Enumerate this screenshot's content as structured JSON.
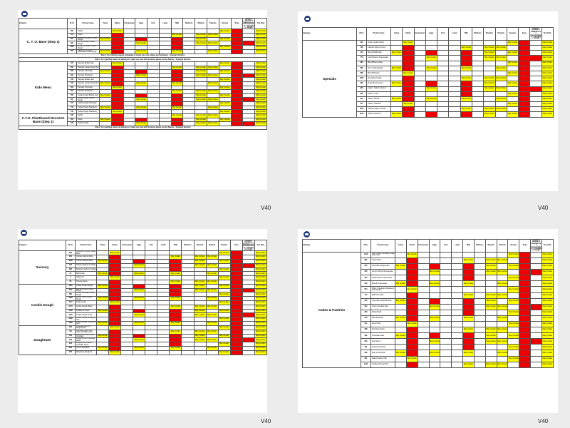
{
  "version": "V40",
  "headers": {
    "category": "Category",
    "plu": "PLUs",
    "product": "Product name",
    "celery": "Celery",
    "gluten": "Gluten",
    "crustaceans": "Crustaceans",
    "eggs": "Eggs",
    "fish": "Fish",
    "lupin": "Lupin",
    "milk": "Milk",
    "molluscs": "Molluscs",
    "mustard": "Mustard",
    "peanuts": "Peanuts",
    "sesame": "Sesame",
    "soya": "Soya",
    "sulphur": "Sulphur Dioxide & Sulphites at a Concentration of > 10mg/kg or 10mg/L",
    "treenuts": "Tree Nuts"
  },
  "labels": {
    "may_contain": "May Contain",
    "gluten_free": "GLUTEN FREE GF*"
  },
  "pages": [
    {
      "rows": [
        {
          "cat": "C. Y. O. Base (Step 1)",
          "span": 6
        },
        {
          "code": "260",
          "name": "Vanilla"
        },
        {
          "code": "271",
          "name": "Crepe"
        },
        {
          "code": "301",
          "name": "Double Chocolate Cookie Dough"
        },
        {
          "code": "302",
          "name": "Milk Chocolate Cookie Dough"
        },
        {
          "code": "1097",
          "name": "White Chocolate Cookie Dough"
        },
        {
          "code": "303",
          "name": "Raspberry & White Chocolate Cookie Dough"
        },
        {
          "note": "Step 2: For matching sauces & toppings to create your own, please see the Sauces - Toppings Sections"
        },
        {
          "note": "Step 3: For matching sauces & toppings to create your own with the above please see the Sauces - Toppings Sections"
        },
        {
          "cat": "Kids Menu",
          "span": 13
        },
        {
          "code": "527",
          "name": "Pancake Bubble Sam"
        },
        {
          "code": "556",
          "name": "Pancake Cookie Dough Fun"
        },
        {
          "code": "566",
          "name": "Pancake Chocolate"
        },
        {
          "code": "602",
          "name": "Pancake Strawberry"
        },
        {
          "code": "610",
          "name": "Pancake Bubble Sam"
        },
        {
          "code": "633",
          "name": "Pancake Cookie Dough Fun"
        },
        {
          "code": "564",
          "name": "Pancake Chocolate"
        },
        {
          "code": "591",
          "name": "Pancake Strawberry"
        },
        {
          "code": "782",
          "name": "Cookie Dough Bubble Sam"
        },
        {
          "code": "597",
          "name": "Cookie Dough Cookie Dough"
        },
        {
          "code": "617",
          "name": "Cookie Dough Chocolate"
        },
        {
          "code": "734",
          "name": "Cookie Dough Strawberry"
        },
        {
          "code": "735",
          "name": "Cookie Dough Strawberry"
        },
        {
          "cat": "C.Y.O. Plantbased Desserts Base (Step 1)",
          "span": 3
        },
        {
          "code": "336",
          "name": "Vanilla"
        },
        {
          "code": "554",
          "name": "Crepe"
        },
        {
          "code": "378",
          "name": "Cookie Dough"
        },
        {
          "note": "Step 2: For matching sauces & toppings to create your own with the above please see the Sauces - Toppings Sections"
        }
      ]
    },
    {
      "rows": [
        {
          "cat": "Specials",
          "span": 15
        },
        {
          "code": "491",
          "name": "Kinder Cookie Dough"
        },
        {
          "code": "459",
          "name": "Caramel Apple & Crepe"
        },
        {
          "code": "440",
          "name": "Biscoff Waffle Melt"
        },
        {
          "code": "770",
          "name": "Lotus Brownie Cheesecake"
        },
        {
          "code": "884",
          "name": "Biscoff Bueno Cake"
        },
        {
          "code": "886",
          "name": "Oreo Cookie Dough"
        },
        {
          "code": "888",
          "name": "Biscoff Tiramisu"
        },
        {
          "code": "1085",
          "name": "Red Velvet Cookie"
        },
        {
          "code": "987",
          "name": "Kinder Bueno Crepe"
        },
        {
          "code": "926",
          "name": "Gelato - Salted Caramel"
        },
        {
          "code": "929",
          "name": "Gelato - Lotus"
        },
        {
          "code": "913",
          "name": "Gelato - Biscoff"
        },
        {
          "code": "977",
          "name": "Gelato - Pistachio"
        },
        {
          "code": "1058",
          "name": "Caramel Apple Crumble"
        },
        {
          "code": "1128",
          "name": "Hazelnut Brownie"
        }
      ]
    },
    {
      "rows": [
        {
          "cat": "Savoury",
          "span": 8
        },
        {
          "code": "869",
          "name": "Pepperoni Chicken Waffle Bites"
        },
        {
          "code": "972",
          "name": "Chicken Nachos Bowl"
        },
        {
          "code": "1068",
          "name": "Chicken Nachos Bowl"
        },
        {
          "code": "792",
          "name": "Chicken Nachos To Share"
        },
        {
          "code": "996",
          "name": "Mexican Nachos To Share"
        },
        {
          "code": "31",
          "name": "Mozzarella"
        },
        {
          "code": "3",
          "name": "Jalapenos"
        },
        {
          "code": "82",
          "name": "Cheese Sauce"
        },
        {
          "cat": "Cookie Dough",
          "span": 10
        },
        {
          "code": "1186",
          "name": "Crinkle Cookie Dough"
        },
        {
          "code": "576",
          "name": "Milk Chocolate Cookie Dough"
        },
        {
          "code": "509",
          "name": "White Chocolate Cookie Dough"
        },
        {
          "code": "1268",
          "name": "Biscoff White Cookie Dough"
        },
        {
          "code": "1027",
          "name": "Triple Cookie"
        },
        {
          "code": "1279",
          "name": "Cookie Dough Platter"
        },
        {
          "code": "1128",
          "name": "Cookies & Cream"
        },
        {
          "code": "1325",
          "name": "Cookie Dough Crush"
        },
        {
          "code": "1408",
          "name": "Cookie Dough Bundle For Two"
        },
        {
          "code": "1409",
          "name": "Cookie Dough Bundle For Four"
        },
        {
          "cat": "Doughnuts",
          "span": 7
        },
        {
          "code": "393",
          "name": "Chocolate glaze & Flinging Cup"
        },
        {
          "code": "411",
          "name": "Cinnamon glaze with white chocolate sauce"
        },
        {
          "code": "412",
          "name": "Lotus Biscoff with white chocolate"
        },
        {
          "code": "408",
          "name": "Doughnut with chocolate sauce"
        },
        {
          "code": "410",
          "name": "Doughnut with white chocolate sauce"
        },
        {
          "code": "452",
          "name": "Lemon Doughnut"
        },
        {
          "code": "453",
          "name": "Raspberry Doughnut"
        }
      ]
    },
    {
      "rows": [
        {
          "cat": "Cakes & Pastries",
          "span": 20
        },
        {
          "code": "1310",
          "name": "New Cookie Chocolate Fudge Cake Slice"
        },
        {
          "code": "881",
          "name": "Carrot Cake"
        },
        {
          "code": "325",
          "name": "Chocolate Fudge Cake"
        },
        {
          "code": "326",
          "name": "Lemon Drizzle Cheesecake"
        },
        {
          "code": "952",
          "name": "Kinder Bueno Cheesecake"
        },
        {
          "code": "953",
          "name": "Biscoff Cheesecake"
        },
        {
          "code": "954",
          "name": "White Chocolate & Raspberry Cheesecake"
        },
        {
          "code": "172",
          "name": "Millionaire Slice"
        },
        {
          "code": "356",
          "name": "Chocolate Fudge Brownie"
        },
        {
          "code": "362",
          "name": "Triple Chocolate Slice"
        },
        {
          "code": "363",
          "name": "Rocky Road"
        },
        {
          "code": "358",
          "name": "Biscoff Blondie"
        },
        {
          "code": "911",
          "name": "Lemon Tart"
        },
        {
          "code": "288",
          "name": "Red Velvet Cake"
        },
        {
          "code": "282",
          "name": "Chocolate Cake"
        },
        {
          "code": "283",
          "name": "Fruit Scone"
        },
        {
          "code": "291",
          "name": "Almond Croissant"
        },
        {
          "code": "292",
          "name": "Pain au Chocolat"
        },
        {
          "code": "381",
          "name": "Salted Caramel Tart"
        },
        {
          "code": "1119",
          "name": "Cookies & Cream Pie"
        }
      ]
    }
  ]
}
